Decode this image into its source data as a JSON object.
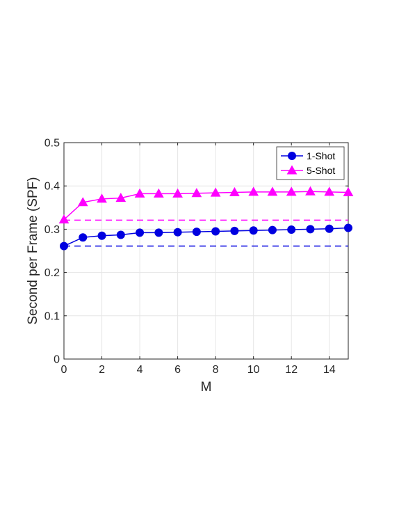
{
  "chart_data": {
    "type": "line",
    "title": "",
    "xlabel": "M",
    "ylabel": "Second per Frame (SPF)",
    "xlim": [
      0,
      15
    ],
    "ylim": [
      0,
      0.5
    ],
    "xticks": [
      0,
      2,
      4,
      6,
      8,
      10,
      12,
      14
    ],
    "yticks": [
      0,
      0.1,
      0.2,
      0.3,
      0.4,
      0.5
    ],
    "xtick_labels": [
      "0",
      "2",
      "4",
      "6",
      "8",
      "10",
      "12",
      "14"
    ],
    "ytick_labels": [
      "0",
      "0.1",
      "0.2",
      "0.3",
      "0.4",
      "0.5"
    ],
    "grid": true,
    "legend_position": "top-right",
    "x": [
      0,
      1,
      2,
      3,
      4,
      5,
      6,
      7,
      8,
      9,
      10,
      11,
      12,
      13,
      14,
      15
    ],
    "series": [
      {
        "name": "1-Shot",
        "color": "#0000e0",
        "marker": "circle",
        "values": [
          0.261,
          0.281,
          0.285,
          0.287,
          0.292,
          0.292,
          0.293,
          0.294,
          0.295,
          0.296,
          0.297,
          0.298,
          0.299,
          0.3,
          0.301,
          0.303
        ],
        "baseline": 0.261
      },
      {
        "name": "5-Shot",
        "color": "#ff00ff",
        "marker": "triangle",
        "values": [
          0.322,
          0.362,
          0.37,
          0.372,
          0.382,
          0.382,
          0.382,
          0.383,
          0.384,
          0.385,
          0.386,
          0.386,
          0.386,
          0.387,
          0.386,
          0.385
        ],
        "baseline": 0.321
      }
    ]
  }
}
